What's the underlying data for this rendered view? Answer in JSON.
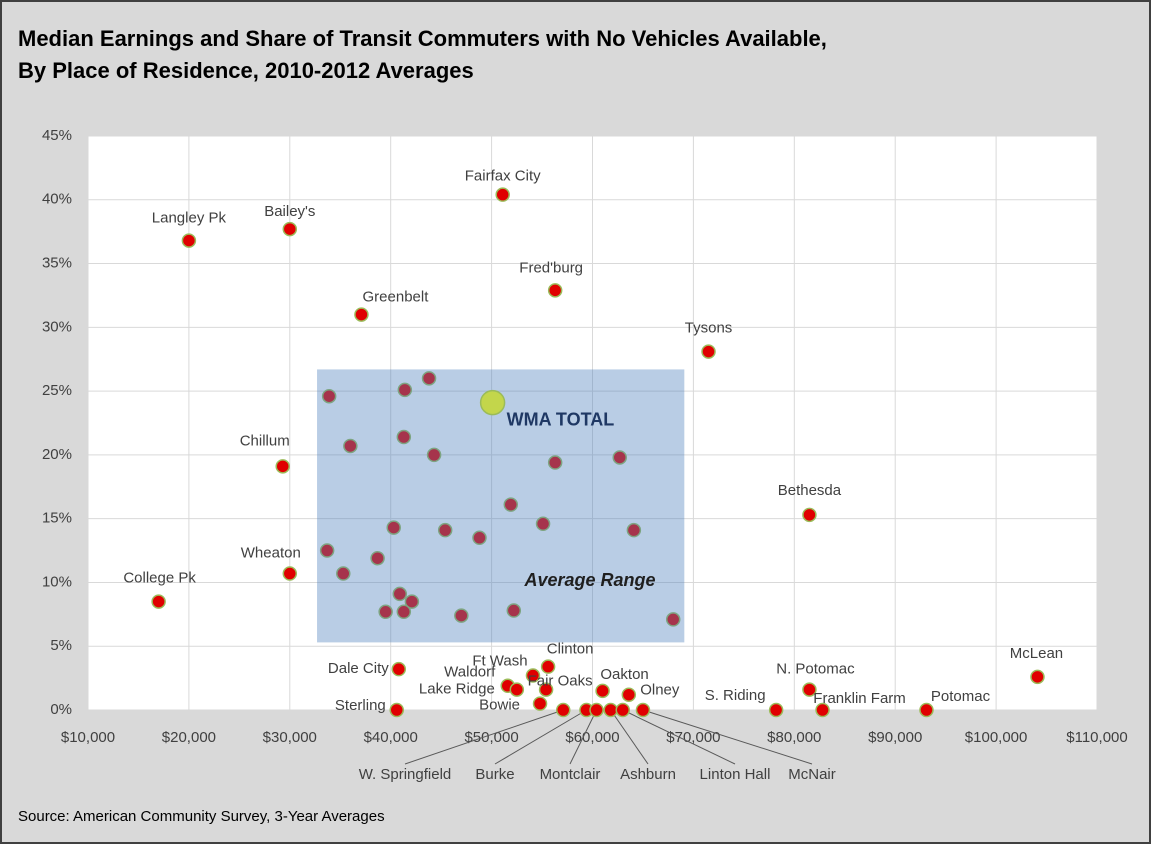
{
  "chart_data": {
    "type": "scatter",
    "title": "Median Earnings and Share of Transit Commuters with No Vehicles Available,",
    "subtitle": "By Place of Residence, 2010-2012 Averages",
    "source": "Source: American Community Survey, 3-Year Averages",
    "xlim": [
      10000,
      110000
    ],
    "xticks": [
      {
        "value": 10000,
        "label": "$10,000"
      },
      {
        "value": 20000,
        "label": "$20,000"
      },
      {
        "value": 30000,
        "label": "$30,000"
      },
      {
        "value": 40000,
        "label": "$40,000"
      },
      {
        "value": 50000,
        "label": "$50,000"
      },
      {
        "value": 60000,
        "label": "$60,000"
      },
      {
        "value": 70000,
        "label": "$70,000"
      },
      {
        "value": 80000,
        "label": "$80,000"
      },
      {
        "value": 90000,
        "label": "$90,000"
      },
      {
        "value": 100000,
        "label": "$100,000"
      },
      {
        "value": 110000,
        "label": "$110,000"
      }
    ],
    "ylim": [
      0,
      45
    ],
    "yticks": [
      {
        "value": 0,
        "label": "0%"
      },
      {
        "value": 5,
        "label": "5%"
      },
      {
        "value": 10,
        "label": "10%"
      },
      {
        "value": 15,
        "label": "15%"
      },
      {
        "value": 20,
        "label": "20%"
      },
      {
        "value": 25,
        "label": "25%"
      },
      {
        "value": 30,
        "label": "30%"
      },
      {
        "value": 35,
        "label": "35%"
      },
      {
        "value": 40,
        "label": "40%"
      },
      {
        "value": 45,
        "label": "45%"
      }
    ],
    "grid": true,
    "color": "#e00000",
    "edge_color": "#9bbb59",
    "points": [
      {
        "label": "Langley Pk",
        "x": 20000,
        "y": 36.8
      },
      {
        "label": "Bailey's",
        "x": 30000,
        "y": 37.7
      },
      {
        "label": "Fairfax City",
        "x": 51100,
        "y": 40.4
      },
      {
        "label": "Fred'burg",
        "x": 56300,
        "y": 32.9
      },
      {
        "label": "Greenbelt",
        "x": 37100,
        "y": 31.0
      },
      {
        "label": "Tysons",
        "x": 71500,
        "y": 28.1
      },
      {
        "label": "Chillum",
        "x": 29300,
        "y": 19.1
      },
      {
        "label": "Bethesda",
        "x": 81500,
        "y": 15.3
      },
      {
        "label": "Wheaton",
        "x": 30000,
        "y": 10.7
      },
      {
        "label": "College Pk",
        "x": 17000,
        "y": 8.5
      },
      {
        "label": "McLean",
        "x": 104100,
        "y": 2.6
      },
      {
        "label": "Dale City",
        "x": 40800,
        "y": 3.2
      },
      {
        "label": "Clinton",
        "x": 55600,
        "y": 3.4
      },
      {
        "label": "Ft Wash",
        "x": 54100,
        "y": 2.7
      },
      {
        "label": "Waldorf",
        "x": 51600,
        "y": 1.9
      },
      {
        "label": "Lake Ridge",
        "x": 52500,
        "y": 1.6
      },
      {
        "label": "Fair Oaks",
        "x": 55400,
        "y": 1.6
      },
      {
        "label": "Bowie",
        "x": 54800,
        "y": 0.5
      },
      {
        "label": "Oakton",
        "x": 61000,
        "y": 1.5
      },
      {
        "label": "Olney",
        "x": 63600,
        "y": 1.2
      },
      {
        "label": "S. Riding",
        "x": 78200,
        "y": 0
      },
      {
        "label": "N. Potomac",
        "x": 81500,
        "y": 1.6
      },
      {
        "label": "Franklin Farm",
        "x": 82800,
        "y": 0
      },
      {
        "label": "Potomac",
        "x": 93100,
        "y": 0
      },
      {
        "label": "Sterling",
        "x": 40600,
        "y": 0
      },
      {
        "label": "W. Springfield",
        "x": 57100,
        "y": 0
      },
      {
        "label": "Burke",
        "x": 59400,
        "y": 0
      },
      {
        "label": "Montclair",
        "x": 60400,
        "y": 0
      },
      {
        "label": "Ashburn",
        "x": 61800,
        "y": 0
      },
      {
        "label": "Linton Hall",
        "x": 63000,
        "y": 0
      },
      {
        "label": "McNair",
        "x": 65000,
        "y": 0
      },
      {
        "label": null,
        "x": 43800,
        "y": 26.0
      },
      {
        "label": null,
        "x": 33900,
        "y": 24.6
      },
      {
        "label": null,
        "x": 41400,
        "y": 25.1
      },
      {
        "label": null,
        "x": 41300,
        "y": 21.4
      },
      {
        "label": null,
        "x": 36000,
        "y": 20.7
      },
      {
        "label": null,
        "x": 44300,
        "y": 20.0
      },
      {
        "label": null,
        "x": 56300,
        "y": 19.4
      },
      {
        "label": null,
        "x": 62700,
        "y": 19.8
      },
      {
        "label": null,
        "x": 51900,
        "y": 16.1
      },
      {
        "label": null,
        "x": 40300,
        "y": 14.3
      },
      {
        "label": null,
        "x": 45400,
        "y": 14.1
      },
      {
        "label": null,
        "x": 48800,
        "y": 13.5
      },
      {
        "label": null,
        "x": 55100,
        "y": 14.6
      },
      {
        "label": null,
        "x": 64100,
        "y": 14.1
      },
      {
        "label": null,
        "x": 33700,
        "y": 12.5
      },
      {
        "label": null,
        "x": 35300,
        "y": 10.7
      },
      {
        "label": null,
        "x": 38700,
        "y": 11.9
      },
      {
        "label": null,
        "x": 40900,
        "y": 9.1
      },
      {
        "label": null,
        "x": 42100,
        "y": 8.5
      },
      {
        "label": null,
        "x": 39500,
        "y": 7.7
      },
      {
        "label": null,
        "x": 41300,
        "y": 7.7
      },
      {
        "label": null,
        "x": 47000,
        "y": 7.4
      },
      {
        "label": null,
        "x": 52200,
        "y": 7.8
      },
      {
        "label": null,
        "x": 68000,
        "y": 7.1
      }
    ],
    "total": {
      "label": "WMA TOTAL",
      "x": 50100,
      "y": 24.1,
      "color": "#c3d64b"
    },
    "average_range": {
      "label": "Average Range",
      "x": [
        32700,
        69100
      ],
      "y": [
        5.3,
        26.7
      ],
      "color": "#4f81bd"
    }
  }
}
